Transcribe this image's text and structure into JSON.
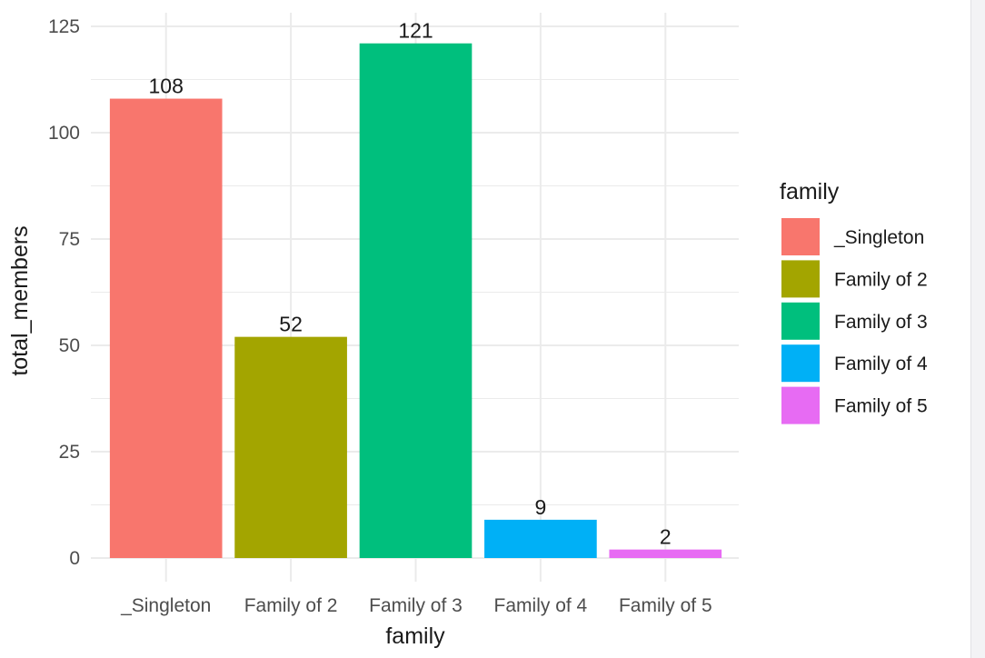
{
  "chart_data": {
    "type": "bar",
    "categories": [
      "_Singleton",
      "Family of 2",
      "Family of 3",
      "Family of 4",
      "Family of 5"
    ],
    "values": [
      108,
      52,
      121,
      9,
      2
    ],
    "colors": [
      "#F8766D",
      "#A3A500",
      "#00BF7D",
      "#00B0F6",
      "#E76BF3"
    ],
    "xlabel": "family",
    "ylabel": "total_members",
    "ylim": [
      0,
      125
    ],
    "yticks": [
      0,
      25,
      50,
      75,
      100,
      125
    ],
    "grid": true,
    "legend": {
      "title": "family",
      "position": "right",
      "entries": [
        "_Singleton",
        "Family of 2",
        "Family of 3",
        "Family of 4",
        "Family of 5"
      ]
    }
  }
}
